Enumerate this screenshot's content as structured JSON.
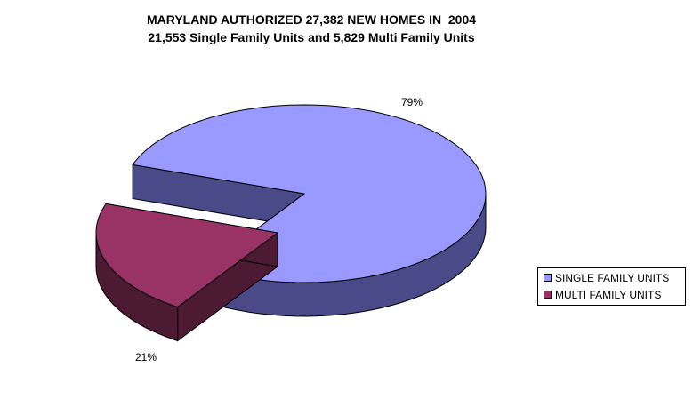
{
  "chart_data": {
    "type": "pie",
    "title": "MARYLAND AUTHORIZED 27,382 NEW HOMES IN  2004",
    "subtitle": "21,553 Single Family Units and 5,829 Multi Family Units",
    "slices": [
      {
        "name": "SINGLE FAMILY UNITS",
        "value": 79,
        "label": "79%",
        "color": "#9999ff",
        "side_color": "#4a4a88"
      },
      {
        "name": "MULTI FAMILY UNITS",
        "value": 21,
        "label": "21%",
        "color": "#993366",
        "side_color": "#4d1a33"
      }
    ],
    "legend_position": "right",
    "style": "3d-exploded"
  }
}
